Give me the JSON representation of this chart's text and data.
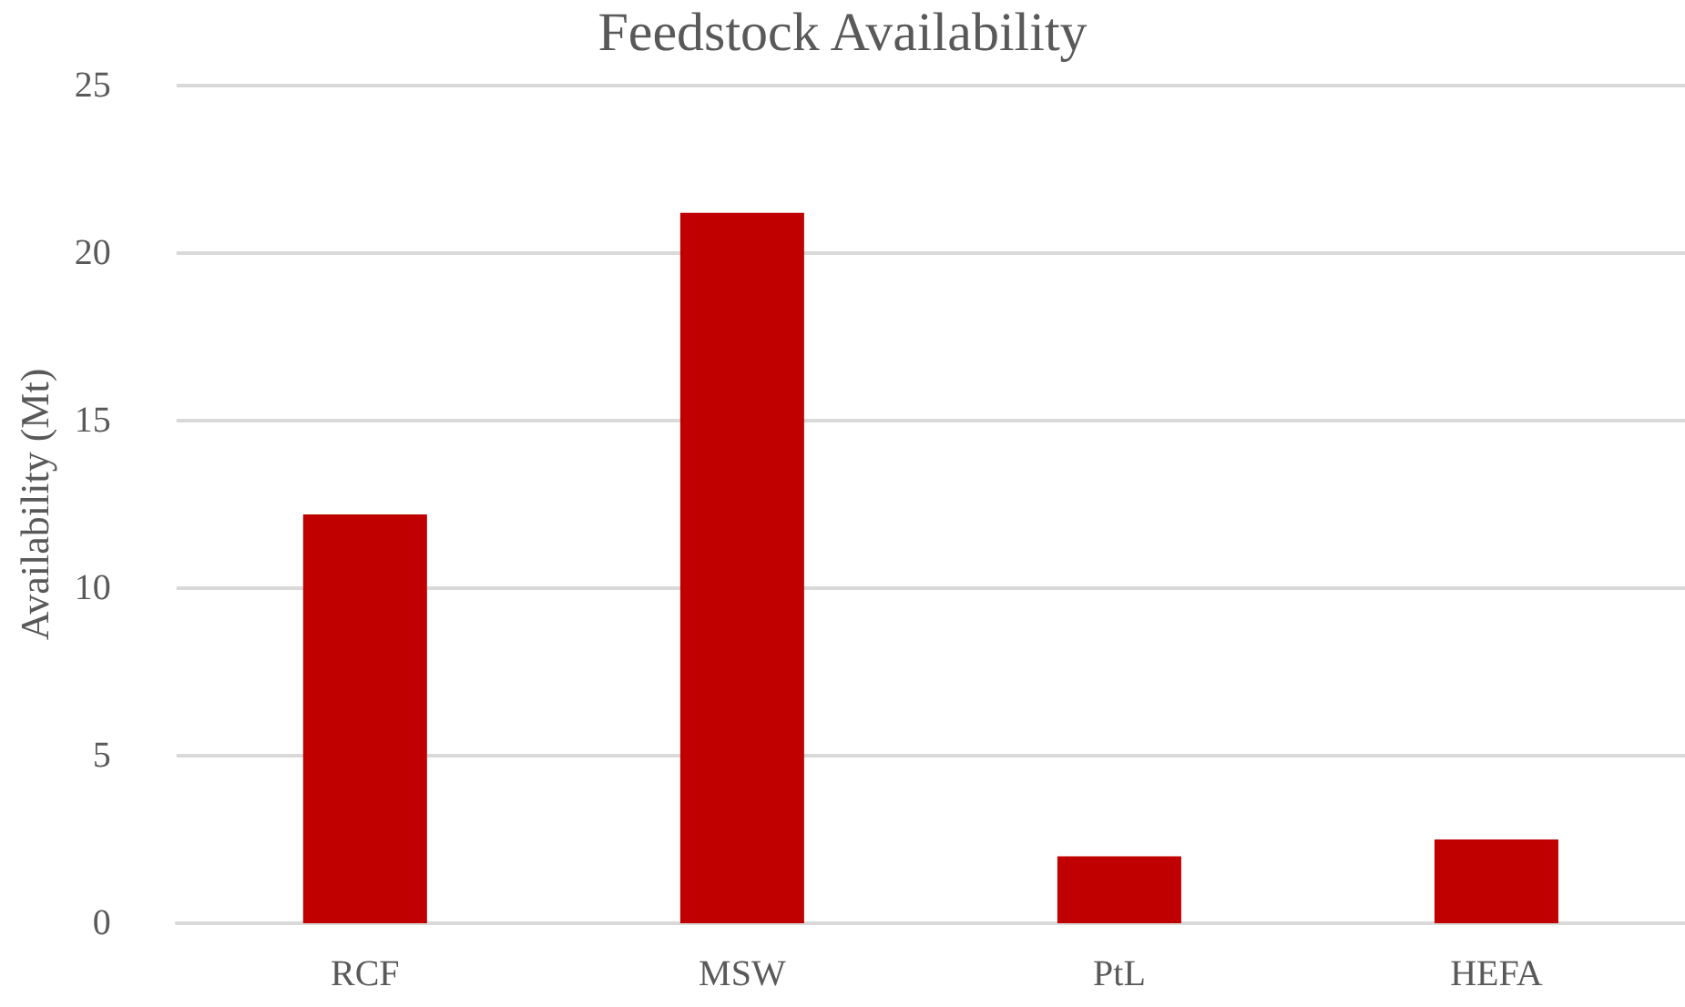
{
  "chart_data": {
    "type": "bar",
    "title": "Feedstock Availability",
    "ylabel": "Availability (Mt)",
    "categories": [
      "RCF",
      "MSW",
      "PtL",
      "HEFA"
    ],
    "values": [
      12.2,
      21.2,
      2.0,
      2.5
    ],
    "color": "#c00000",
    "ylim": [
      0,
      25
    ],
    "yticks": [
      0,
      5,
      10,
      15,
      20,
      25
    ],
    "grid": "y"
  }
}
